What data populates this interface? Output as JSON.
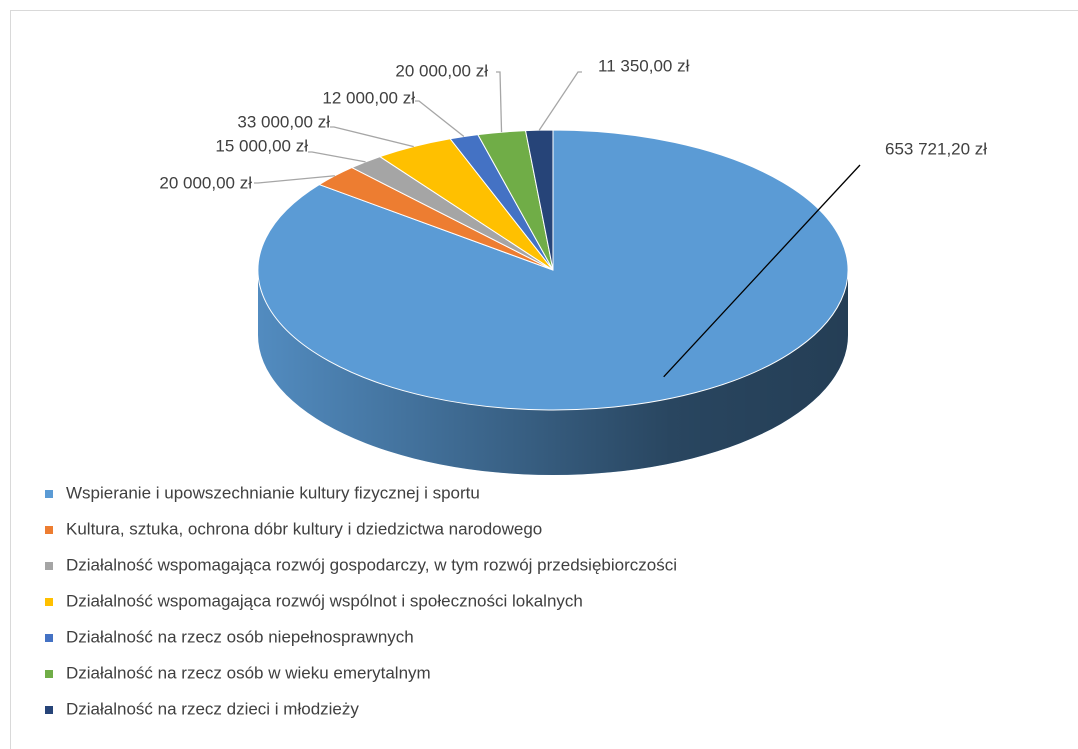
{
  "chart_data": {
    "type": "pie3d",
    "categories": [
      "Wspieranie i upowszechnianie kultury fizycznej i sportu",
      "Kultura, sztuka,  ochrona dóbr kultury i dziedzictwa narodowego",
      "Działalność wspomagająca rozwój gospodarczy, w tym rozwój przedsiębiorczości",
      "Działalność wspomagająca rozwój wspólnot i społeczności lokalnych",
      "Działalność na rzecz osób niepełnosprawnych",
      "Działalność na rzecz osób w wieku emerytalnym",
      "Działalność na rzecz dzieci i młodzieży"
    ],
    "values": [
      653721.2,
      20000,
      15000,
      33000,
      12000,
      20000,
      11350
    ],
    "value_labels": [
      "653 721,20 zł",
      "20 000,00 zł",
      "15 000,00 zł",
      "33 000,00 zł",
      "12 000,00 zł",
      "20 000,00 zł",
      "11 350,00 zł"
    ],
    "colors": [
      "#5b9bd5",
      "#ed7d31",
      "#a5a5a5",
      "#ffc000",
      "#4472c4",
      "#70ad47",
      "#264478"
    ],
    "legend": "bottom-left"
  }
}
